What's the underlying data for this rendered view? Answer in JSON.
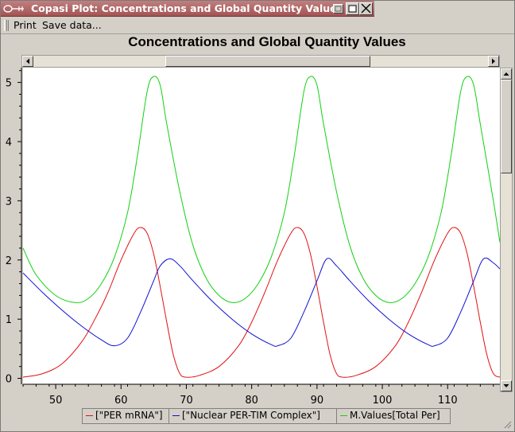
{
  "window": {
    "title": "Copasi Plot: Concentrations and Global Quantity Values"
  },
  "toolbar": {
    "print_label": "Print",
    "save_label": "Save data..."
  },
  "icons": [
    "app-icon",
    "shade-icon",
    "maximize-icon",
    "close-icon",
    "toolbar-grip-icon",
    "arrow-left-icon",
    "arrow-right-icon",
    "arrow-up-icon",
    "arrow-down-icon",
    "resize-grip-icon"
  ],
  "colors": {
    "per_mrna": "#e01010",
    "nuclear_per_tim": "#1010d0",
    "total_per": "#10d010"
  },
  "chart_data": {
    "type": "line",
    "title": "Concentrations and Global Quantity Values",
    "xlabel": "",
    "ylabel": "",
    "xlim": [
      45,
      118
    ],
    "ylim": [
      -0.1,
      5.25
    ],
    "x_ticks": [
      50,
      60,
      70,
      80,
      90,
      100,
      110
    ],
    "y_ticks": [
      0,
      1,
      2,
      3,
      4,
      5
    ],
    "grid": false,
    "legend": "bottom",
    "series": [
      {
        "name": "[\"PER mRNA\"]",
        "color": "#e01010",
        "x": [
          45,
          48,
          51,
          54,
          56,
          58,
          60,
          62,
          63,
          64,
          65,
          66,
          67,
          68,
          69,
          70,
          72,
          75,
          78,
          80,
          82,
          84,
          86,
          87,
          88,
          89,
          90,
          91,
          92,
          93,
          94,
          96,
          99,
          102,
          104,
          106,
          108,
          110,
          111,
          112,
          113,
          114,
          115,
          116,
          117,
          118
        ],
        "y": [
          0.02,
          0.08,
          0.25,
          0.62,
          1.0,
          1.45,
          2.0,
          2.45,
          2.55,
          2.45,
          2.1,
          1.55,
          0.95,
          0.4,
          0.08,
          0.02,
          0.05,
          0.2,
          0.55,
          0.95,
          1.45,
          2.0,
          2.45,
          2.55,
          2.45,
          2.1,
          1.55,
          0.95,
          0.4,
          0.08,
          0.02,
          0.05,
          0.2,
          0.55,
          0.95,
          1.45,
          2.0,
          2.45,
          2.55,
          2.45,
          2.1,
          1.55,
          0.95,
          0.4,
          0.08,
          0.02
        ]
      },
      {
        "name": "[\"Nuclear PER-TIM Complex\"]",
        "color": "#1010d0",
        "x": [
          45,
          48,
          51,
          54,
          57,
          59,
          61,
          63,
          65,
          66,
          67.5,
          69,
          71,
          74,
          77,
          80,
          83,
          84,
          86,
          88,
          90,
          91.5,
          93,
          95,
          98,
          101,
          104,
          107,
          108,
          110,
          112,
          114,
          115.5,
          117,
          118
        ],
        "y": [
          1.78,
          1.45,
          1.15,
          0.88,
          0.65,
          0.55,
          0.68,
          1.12,
          1.65,
          1.9,
          2.02,
          1.9,
          1.65,
          1.3,
          1.0,
          0.75,
          0.57,
          0.55,
          0.68,
          1.12,
          1.65,
          2.02,
          1.9,
          1.65,
          1.3,
          1.0,
          0.75,
          0.57,
          0.55,
          0.68,
          1.12,
          1.65,
          2.02,
          1.95,
          1.85
        ]
      },
      {
        "name": "M.Values[Total Per]",
        "color": "#10d010",
        "x": [
          45,
          47,
          50,
          53,
          55,
          57,
          59,
          61,
          62.5,
          64,
          65,
          66,
          67,
          69,
          71,
          73,
          75,
          77,
          79,
          81,
          83,
          85,
          86.5,
          88,
          89,
          90,
          91,
          93,
          95,
          97,
          99,
          101,
          103,
          105,
          107,
          109,
          110.5,
          112,
          113,
          114,
          115,
          117,
          118
        ],
        "y": [
          2.2,
          1.75,
          1.4,
          1.28,
          1.35,
          1.6,
          2.05,
          2.8,
          3.75,
          4.85,
          5.1,
          4.95,
          4.3,
          3.15,
          2.25,
          1.7,
          1.4,
          1.28,
          1.35,
          1.6,
          2.05,
          2.8,
          3.75,
          4.85,
          5.1,
          4.95,
          4.3,
          3.15,
          2.25,
          1.7,
          1.4,
          1.28,
          1.35,
          1.6,
          2.05,
          2.8,
          3.75,
          4.85,
          5.1,
          4.95,
          4.3,
          3.0,
          2.3
        ]
      }
    ]
  },
  "legend": {
    "items": [
      {
        "label": "[\"PER mRNA\"]"
      },
      {
        "label": "[\"Nuclear PER-TIM Complex\"]"
      },
      {
        "label": "M.Values[Total Per]"
      }
    ]
  }
}
